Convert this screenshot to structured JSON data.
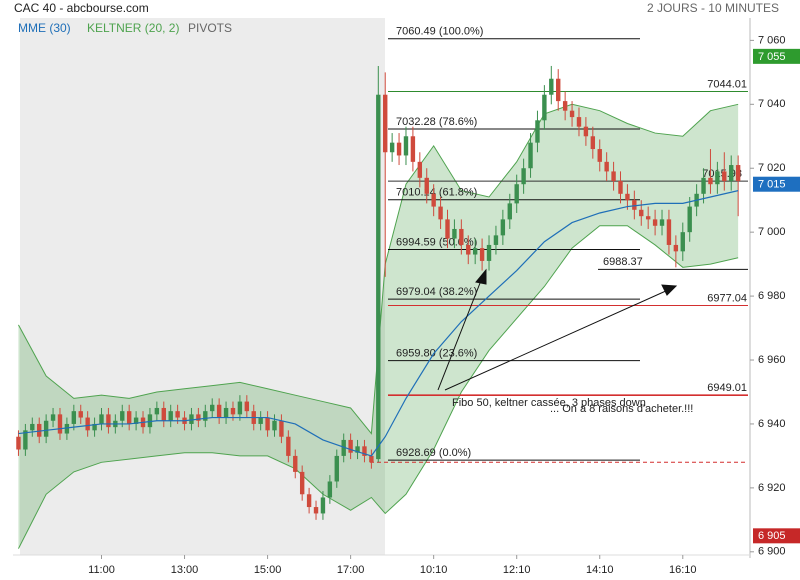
{
  "chart_data": {
    "type": "candlestick",
    "title": "CAC 40 - abcbourse.com",
    "subtitle": "2 JOURS - 10 MINUTES",
    "xticks": [
      {
        "value": 12,
        "label": "11:00"
      },
      {
        "value": 24,
        "label": "13:00"
      },
      {
        "value": 36,
        "label": "15:00"
      },
      {
        "value": 48,
        "label": "17:00"
      },
      {
        "value": 60,
        "label": "10:10"
      },
      {
        "value": 72,
        "label": "12:10"
      },
      {
        "value": 84,
        "label": "14:10"
      },
      {
        "value": 96,
        "label": "16:10"
      }
    ],
    "ylim": [
      6899,
      7067
    ],
    "yticks": [
      {
        "value": 6900,
        "label": "6 900"
      },
      {
        "value": 6920,
        "label": "6 920"
      },
      {
        "value": 6940,
        "label": "6 940"
      },
      {
        "value": 6960,
        "label": "6 960"
      },
      {
        "value": 6980,
        "label": "6 980"
      },
      {
        "value": 7000,
        "label": "7 000"
      },
      {
        "value": 7020,
        "label": "7 020"
      },
      {
        "value": 7040,
        "label": "7 040"
      },
      {
        "value": 7060,
        "label": "7 060"
      }
    ],
    "up_color": "#3b8f4f",
    "down_color": "#cf4a3c",
    "open": [
      6936,
      6932,
      6938,
      6940,
      6936,
      6941,
      6943,
      6937,
      6940,
      6944,
      6942,
      6938,
      6940,
      6943,
      6939,
      6941,
      6944,
      6940,
      6942,
      6939,
      6943,
      6945,
      6941,
      6944,
      6942,
      6940,
      6943,
      6941,
      6944,
      6946,
      6942,
      6945,
      6943,
      6947,
      6944,
      6940,
      6942,
      6938,
      6941,
      6936,
      6930,
      6925,
      6918,
      6914,
      6912,
      6917,
      6922,
      6930,
      6935,
      6931,
      6933,
      6930,
      6929,
      7043,
      7025,
      7028,
      7024,
      7030,
      7022,
      7017,
      7012,
      7008,
      7004,
      6998,
      7001,
      6996,
      6993,
      6995,
      6991,
      6996,
      6999,
      7004,
      7009,
      7015,
      7020,
      7028,
      7035,
      7043,
      7048,
      7041,
      7038,
      7036,
      7033,
      7030,
      7026,
      7022,
      7019,
      7016,
      7012,
      7010,
      7007,
      7005,
      7004,
      7002,
      7004,
      6996,
      6994,
      7000,
      7008,
      7012,
      7017,
      7015,
      7019,
      7016,
      7021
    ],
    "high": [
      6938,
      6940,
      6942,
      6942,
      6943,
      6945,
      6945,
      6942,
      6946,
      6946,
      6944,
      6942,
      6945,
      6945,
      6943,
      6946,
      6946,
      6944,
      6944,
      6945,
      6947,
      6947,
      6946,
      6946,
      6944,
      6945,
      6945,
      6946,
      6948,
      6948,
      6947,
      6947,
      6949,
      6949,
      6946,
      6944,
      6944,
      6943,
      6943,
      6938,
      6932,
      6927,
      6920,
      6916,
      6919,
      6924,
      6932,
      6937,
      6937,
      6935,
      6935,
      6932,
      7052,
      7050,
      7031,
      7031,
      7033,
      7033,
      7025,
      7020,
      7015,
      7011,
      7007,
      7004,
      7004,
      6999,
      6998,
      6998,
      6999,
      7002,
      7007,
      7012,
      7018,
      7023,
      7031,
      7038,
      7046,
      7052,
      7051,
      7044,
      7041,
      7039,
      7036,
      7033,
      7029,
      7025,
      7022,
      7019,
      7015,
      7013,
      7010,
      7008,
      7007,
      7007,
      7007,
      6999,
      7003,
      7011,
      7015,
      7020,
      7026,
      7022,
      7025,
      7024,
      7024
    ],
    "low": [
      6930,
      6930,
      6936,
      6934,
      6934,
      6939,
      6935,
      6935,
      6938,
      6940,
      6936,
      6936,
      6938,
      6937,
      6937,
      6939,
      6938,
      6938,
      6937,
      6937,
      6941,
      6939,
      6939,
      6940,
      6938,
      6938,
      6939,
      6939,
      6942,
      6940,
      6940,
      6941,
      6941,
      6942,
      6938,
      6938,
      6936,
      6936,
      6934,
      6928,
      6923,
      6916,
      6912,
      6910,
      6910,
      6915,
      6920,
      6928,
      6929,
      6929,
      6928,
      6926,
      6928,
      6986,
      7022,
      7021,
      7021,
      7019,
      7014,
      7009,
      7005,
      7001,
      6995,
      6995,
      6993,
      6990,
      6990,
      6988,
      6988,
      6993,
      6996,
      7001,
      7006,
      7012,
      7017,
      7025,
      7032,
      7040,
      7038,
      7035,
      7033,
      7030,
      7027,
      7023,
      7019,
      7016,
      7013,
      7009,
      7007,
      7004,
      7002,
      7001,
      6999,
      6999,
      6993,
      6989,
      6991,
      6997,
      7005,
      7009,
      7012,
      7012,
      7013,
      7013,
      7005
    ],
    "close": [
      6932,
      6938,
      6940,
      6936,
      6941,
      6943,
      6937,
      6940,
      6944,
      6942,
      6938,
      6940,
      6943,
      6939,
      6941,
      6944,
      6940,
      6942,
      6939,
      6943,
      6945,
      6941,
      6944,
      6942,
      6940,
      6943,
      6941,
      6944,
      6946,
      6942,
      6945,
      6943,
      6947,
      6944,
      6940,
      6942,
      6938,
      6941,
      6936,
      6930,
      6925,
      6918,
      6914,
      6912,
      6917,
      6922,
      6930,
      6935,
      6931,
      6933,
      6930,
      6928,
      7043,
      7025,
      7028,
      7024,
      7030,
      7022,
      7017,
      7012,
      7008,
      7004,
      6998,
      7001,
      6996,
      6993,
      6995,
      6991,
      6996,
      6999,
      7004,
      7009,
      7015,
      7020,
      7028,
      7035,
      7043,
      7048,
      7041,
      7038,
      7036,
      7033,
      7030,
      7026,
      7022,
      7019,
      7016,
      7012,
      7010,
      7007,
      7005,
      7004,
      7002,
      7004,
      6996,
      6994,
      7000,
      7008,
      7012,
      7017,
      7015,
      7019,
      7016,
      7021,
      7016
    ],
    "mme": {
      "name": "MME (30)",
      "color": "#1f6fb8",
      "x": [
        0,
        4,
        8,
        12,
        16,
        20,
        24,
        28,
        32,
        36,
        40,
        44,
        48,
        51,
        53,
        56,
        60,
        64,
        68,
        72,
        76,
        80,
        84,
        88,
        92,
        96,
        100,
        104
      ],
      "values": [
        6937,
        6938,
        6939,
        6940,
        6940,
        6941,
        6941,
        6942,
        6942,
        6942,
        6940,
        6935,
        6932,
        6930,
        6936,
        6948,
        6962,
        6972,
        6980,
        6988,
        6997,
        7003,
        7006,
        7008,
        7009,
        7009,
        7011,
        7013
      ]
    },
    "keltner": {
      "name": "KELTNER (20, 2)",
      "color": "#4fa34f",
      "x": [
        0,
        4,
        8,
        12,
        16,
        20,
        24,
        28,
        32,
        36,
        40,
        44,
        48,
        51,
        53,
        56,
        60,
        64,
        68,
        72,
        76,
        80,
        84,
        88,
        92,
        96,
        100,
        104
      ],
      "upper": [
        6971,
        6955,
        6948,
        6949,
        6948,
        6950,
        6951,
        6952,
        6953,
        6951,
        6949,
        6947,
        6945,
        6937,
        6990,
        7015,
        7027,
        7013,
        7011,
        7022,
        7037,
        7040,
        7038,
        7034,
        7031,
        7030,
        7038,
        7040
      ],
      "lower": [
        6901,
        6918,
        6925,
        6928,
        6929,
        6930,
        6931,
        6931,
        6930,
        6930,
        6926,
        6918,
        6913,
        6917,
        6912,
        6918,
        6932,
        6950,
        6963,
        6973,
        6983,
        6995,
        7002,
        7002,
        6996,
        6989,
        6990,
        6992
      ]
    },
    "pivots_legend": "PIVOTS",
    "fibonacci": [
      {
        "value": 7060.49,
        "label": "7060.49 (100.0%)"
      },
      {
        "value": 7032.28,
        "label": "7032.28 (78.6%)"
      },
      {
        "value": 7010.14,
        "label": "7010.14 (61.8%)"
      },
      {
        "value": 6994.59,
        "label": "6994.59 (50.0%)"
      },
      {
        "value": 6979.04,
        "label": "6979.04 (38.2%)"
      },
      {
        "value": 6959.8,
        "label": "6959.80 (23.6%)"
      },
      {
        "value": 6928.69,
        "label": "6928.69 (0.0%)"
      }
    ],
    "levels": [
      {
        "value": 7044.01,
        "color": "#2e8b2e"
      },
      {
        "value": 7015.98,
        "color": "#333333"
      },
      {
        "value": 6988.37,
        "color": "#111111"
      },
      {
        "value": 6977.04,
        "color": "#d32f2f"
      },
      {
        "value": 6949.01,
        "color": "#d32f2f"
      },
      {
        "value": 6928,
        "color": "#d32f2f"
      }
    ],
    "price_tags": [
      {
        "value": 7055,
        "label": "7 055",
        "color": "#2e9b2e"
      },
      {
        "value": 7015,
        "label": "7 015",
        "color": "#1e6fc0"
      },
      {
        "value": 6905,
        "label": "6 905",
        "color": "#c62828"
      }
    ],
    "annotations": [
      "Fibo 50, keltner cassée, 3 phases down",
      "... On a 8 raisons d'acheter.!!!"
    ]
  }
}
